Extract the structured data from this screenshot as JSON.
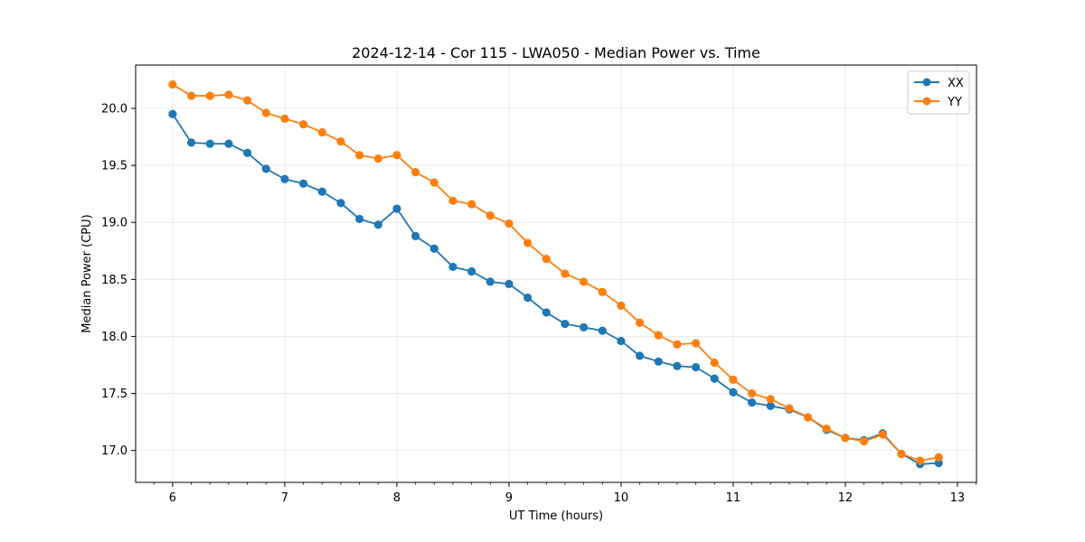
{
  "chart_data": {
    "type": "line",
    "title": "2024-12-14 - Cor 115 - LWA050 - Median Power vs. Time",
    "xlabel": "UT Time (hours)",
    "ylabel": "Median Power (CPU)",
    "xlim": [
      5.67,
      13.17
    ],
    "ylim": [
      16.72,
      20.38
    ],
    "xticks": [
      6,
      7,
      8,
      9,
      10,
      11,
      12,
      13
    ],
    "yticks": [
      17.0,
      17.5,
      18.0,
      18.5,
      19.0,
      19.5,
      20.0
    ],
    "xtick_labels": [
      "6",
      "7",
      "8",
      "9",
      "10",
      "11",
      "12",
      "13"
    ],
    "ytick_labels": [
      "17.0",
      "17.5",
      "18.0",
      "18.5",
      "19.0",
      "19.5",
      "20.0"
    ],
    "grid": true,
    "legend_position": "top-right",
    "x": [
      6.0,
      6.1667,
      6.3333,
      6.5,
      6.6667,
      6.8333,
      7.0,
      7.1667,
      7.3333,
      7.5,
      7.6667,
      7.8333,
      8.0,
      8.1667,
      8.3333,
      8.5,
      8.6667,
      8.8333,
      9.0,
      9.1667,
      9.3333,
      9.5,
      9.6667,
      9.8333,
      10.0,
      10.1667,
      10.3333,
      10.5,
      10.6667,
      10.8333,
      11.0,
      11.1667,
      11.3333,
      11.5,
      11.6667,
      11.8333,
      12.0,
      12.1667,
      12.3333,
      12.5,
      12.6667,
      12.8333
    ],
    "series": [
      {
        "name": "XX",
        "color": "#1f77b4",
        "values": [
          19.95,
          19.7,
          19.69,
          19.69,
          19.61,
          19.47,
          19.38,
          19.34,
          19.27,
          19.17,
          19.03,
          18.98,
          19.12,
          18.88,
          18.77,
          18.61,
          18.57,
          18.48,
          18.46,
          18.34,
          18.21,
          18.11,
          18.08,
          18.05,
          17.96,
          17.83,
          17.78,
          17.74,
          17.73,
          17.63,
          17.51,
          17.42,
          17.39,
          17.36,
          17.29,
          17.18,
          17.11,
          17.09,
          17.15,
          16.97,
          16.88,
          16.89
        ]
      },
      {
        "name": "YY",
        "color": "#ff7f0e",
        "values": [
          20.21,
          20.11,
          20.11,
          20.12,
          20.07,
          19.96,
          19.91,
          19.86,
          19.79,
          19.71,
          19.59,
          19.56,
          19.59,
          19.44,
          19.35,
          19.19,
          19.16,
          19.06,
          18.99,
          18.82,
          18.68,
          18.55,
          18.48,
          18.39,
          18.27,
          18.12,
          18.01,
          17.93,
          17.94,
          17.77,
          17.62,
          17.5,
          17.45,
          17.37,
          17.29,
          17.19,
          17.11,
          17.08,
          17.14,
          16.97,
          16.91,
          16.94
        ]
      }
    ]
  }
}
